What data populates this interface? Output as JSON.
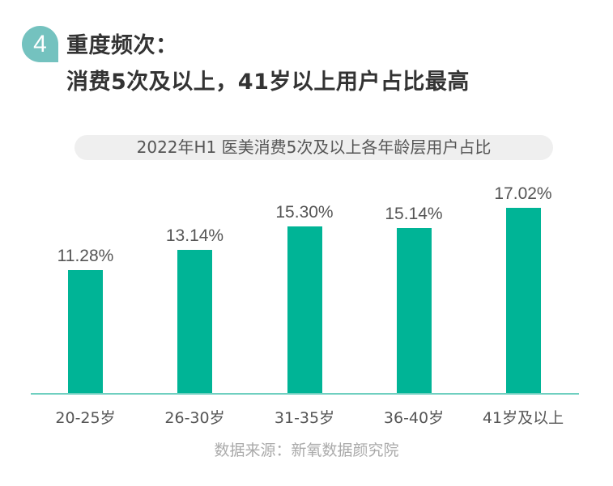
{
  "header": {
    "badge_number": "4",
    "title_line1": "重度频次：",
    "title_line2": "消费5次及以上，41岁以上用户占比最高"
  },
  "chart_subtitle": "2022年H1 医美消费5次及以上各年龄层用户占比",
  "source": "数据来源：新氧数据颜究院",
  "colors": {
    "badge": "#74c2bf",
    "bar": "#00b496",
    "axis": "#6fcfc0",
    "pill_bg": "#efefef"
  },
  "chart_data": {
    "type": "bar",
    "title": "2022年H1 医美消费5次及以上各年龄层用户占比",
    "categories": [
      "20-25岁",
      "26-30岁",
      "31-35岁",
      "36-40岁",
      "41岁及以上"
    ],
    "values": [
      11.28,
      13.14,
      15.3,
      15.14,
      17.02
    ],
    "value_labels": [
      "11.28%",
      "13.14%",
      "15.30%",
      "15.14%",
      "17.02%"
    ],
    "unit": "%",
    "xlabel": "",
    "ylabel": "",
    "grid": false,
    "legend": null,
    "annotations": [
      "数据来源：新氧数据颜究院"
    ]
  }
}
